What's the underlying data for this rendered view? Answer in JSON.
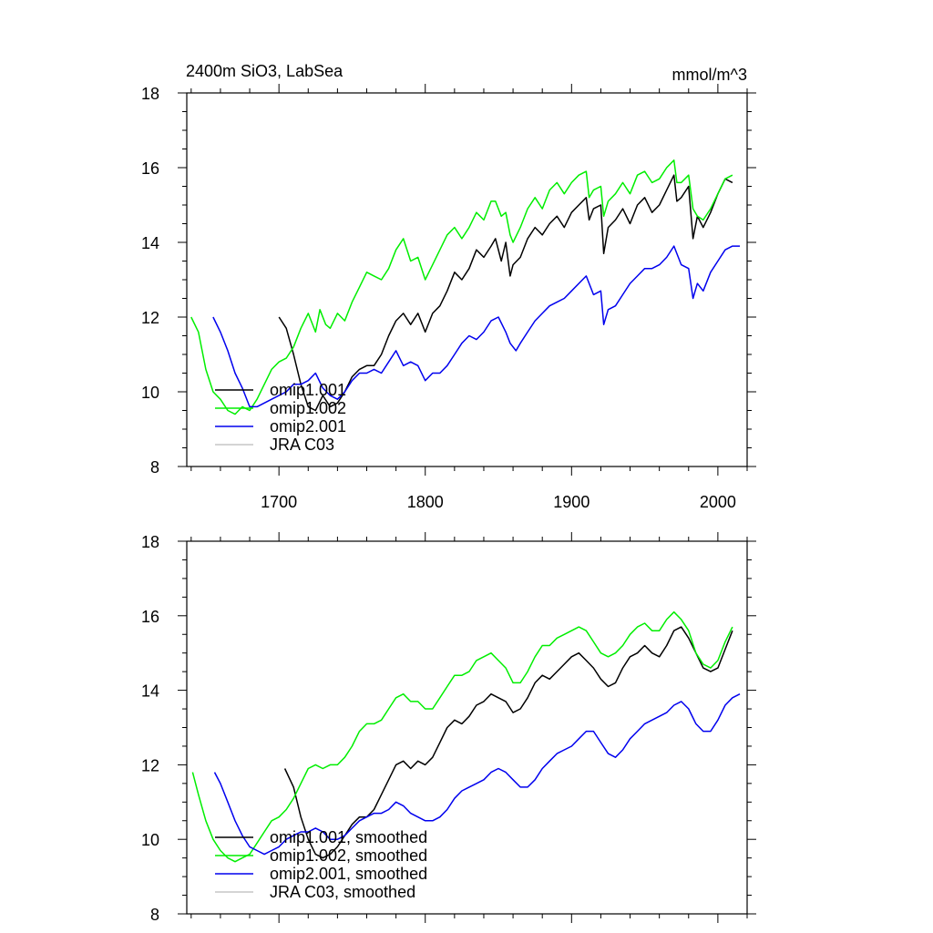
{
  "figure": {
    "title_left": "2400m SiO3, LabSea",
    "title_right": "mmol/m^3"
  },
  "colors": {
    "omip1.001": "#000000",
    "omip1.002": "#00ee00",
    "omip2.001": "#0000ee",
    "JRA C03": "#bbbbbb"
  },
  "chart_data": [
    {
      "type": "line",
      "panel": "top",
      "xlim": [
        1637,
        2020
      ],
      "ylim": [
        8,
        18
      ],
      "xticks": [
        1700,
        1800,
        1900,
        2000
      ],
      "yticks": [
        8,
        10,
        12,
        14,
        16,
        18
      ],
      "legend_placement": "bottom-left",
      "series": [
        {
          "name": "omip1.001",
          "color": "#000000",
          "x": [
            1700,
            1705,
            1710,
            1715,
            1720,
            1725,
            1730,
            1735,
            1740,
            1745,
            1750,
            1755,
            1760,
            1765,
            1770,
            1775,
            1780,
            1785,
            1790,
            1795,
            1800,
            1805,
            1810,
            1815,
            1820,
            1825,
            1830,
            1835,
            1840,
            1845,
            1848,
            1852,
            1855,
            1858,
            1860,
            1865,
            1870,
            1875,
            1880,
            1885,
            1890,
            1895,
            1900,
            1905,
            1910,
            1912,
            1915,
            1920,
            1922,
            1925,
            1930,
            1935,
            1940,
            1945,
            1950,
            1955,
            1960,
            1965,
            1970,
            1972,
            1975,
            1980,
            1983,
            1986,
            1990,
            1995,
            2000,
            2005,
            2010
          ],
          "y": [
            12.0,
            11.7,
            11.0,
            10.2,
            9.6,
            9.5,
            9.9,
            9.6,
            9.7,
            10.0,
            10.4,
            10.6,
            10.7,
            10.7,
            11.0,
            11.5,
            11.9,
            12.1,
            11.8,
            12.1,
            11.6,
            12.1,
            12.3,
            12.7,
            13.2,
            13.0,
            13.3,
            13.8,
            13.6,
            13.9,
            14.1,
            13.5,
            14.0,
            13.1,
            13.4,
            13.6,
            14.1,
            14.4,
            14.2,
            14.5,
            14.7,
            14.4,
            14.8,
            15.0,
            15.2,
            14.6,
            14.9,
            15.0,
            13.7,
            14.4,
            14.6,
            14.9,
            14.5,
            15.0,
            15.2,
            14.8,
            15.0,
            15.4,
            15.8,
            15.1,
            15.2,
            15.5,
            14.1,
            14.7,
            14.4,
            14.8,
            15.3,
            15.7,
            15.6
          ]
        },
        {
          "name": "omip1.002",
          "color": "#00ee00",
          "x": [
            1640,
            1645,
            1650,
            1655,
            1660,
            1665,
            1670,
            1675,
            1680,
            1685,
            1690,
            1695,
            1700,
            1705,
            1710,
            1715,
            1720,
            1725,
            1728,
            1732,
            1735,
            1740,
            1745,
            1750,
            1755,
            1760,
            1765,
            1770,
            1775,
            1780,
            1785,
            1790,
            1795,
            1800,
            1805,
            1810,
            1815,
            1820,
            1825,
            1830,
            1835,
            1840,
            1845,
            1848,
            1852,
            1855,
            1858,
            1860,
            1865,
            1870,
            1875,
            1880,
            1885,
            1890,
            1895,
            1900,
            1905,
            1910,
            1912,
            1915,
            1920,
            1922,
            1925,
            1930,
            1935,
            1940,
            1945,
            1950,
            1955,
            1960,
            1965,
            1970,
            1972,
            1975,
            1980,
            1983,
            1986,
            1990,
            1995,
            2000,
            2005,
            2010
          ],
          "y": [
            12.0,
            11.6,
            10.6,
            10.0,
            9.8,
            9.5,
            9.4,
            9.6,
            9.5,
            9.8,
            10.2,
            10.6,
            10.8,
            10.9,
            11.2,
            11.7,
            12.1,
            11.6,
            12.2,
            11.8,
            11.7,
            12.1,
            11.9,
            12.4,
            12.8,
            13.2,
            13.1,
            13.0,
            13.3,
            13.8,
            14.1,
            13.5,
            13.6,
            13.0,
            13.4,
            13.8,
            14.2,
            14.4,
            14.1,
            14.4,
            14.8,
            14.6,
            15.1,
            15.1,
            14.7,
            14.8,
            14.2,
            14.0,
            14.4,
            14.9,
            15.2,
            14.9,
            15.4,
            15.6,
            15.3,
            15.6,
            15.8,
            15.9,
            15.2,
            15.4,
            15.5,
            14.7,
            15.1,
            15.3,
            15.6,
            15.3,
            15.8,
            15.9,
            15.6,
            15.7,
            16.0,
            16.2,
            15.6,
            15.6,
            15.8,
            14.9,
            14.7,
            14.6,
            14.9,
            15.3,
            15.7,
            15.8
          ]
        },
        {
          "name": "omip2.001",
          "color": "#0000ee",
          "x": [
            1655,
            1660,
            1665,
            1670,
            1675,
            1680,
            1685,
            1690,
            1695,
            1700,
            1705,
            1710,
            1715,
            1720,
            1725,
            1730,
            1735,
            1740,
            1745,
            1750,
            1755,
            1760,
            1765,
            1770,
            1775,
            1780,
            1785,
            1790,
            1795,
            1800,
            1805,
            1810,
            1815,
            1820,
            1825,
            1830,
            1835,
            1840,
            1845,
            1850,
            1855,
            1858,
            1862,
            1865,
            1870,
            1875,
            1880,
            1885,
            1890,
            1895,
            1900,
            1905,
            1910,
            1915,
            1920,
            1922,
            1925,
            1930,
            1935,
            1940,
            1945,
            1950,
            1955,
            1960,
            1965,
            1970,
            1975,
            1980,
            1983,
            1986,
            1990,
            1995,
            2000,
            2005,
            2010,
            2015
          ],
          "y": [
            12.0,
            11.6,
            11.1,
            10.5,
            10.1,
            9.6,
            9.6,
            9.7,
            9.8,
            9.9,
            10.0,
            10.2,
            10.2,
            10.3,
            10.5,
            10.1,
            9.9,
            9.8,
            10.0,
            10.3,
            10.5,
            10.5,
            10.6,
            10.5,
            10.8,
            11.1,
            10.7,
            10.8,
            10.7,
            10.3,
            10.5,
            10.5,
            10.7,
            11.0,
            11.3,
            11.5,
            11.4,
            11.6,
            11.9,
            12.0,
            11.6,
            11.3,
            11.1,
            11.3,
            11.6,
            11.9,
            12.1,
            12.3,
            12.4,
            12.5,
            12.7,
            12.9,
            13.1,
            12.6,
            12.7,
            11.8,
            12.2,
            12.3,
            12.6,
            12.9,
            13.1,
            13.3,
            13.3,
            13.4,
            13.6,
            13.9,
            13.4,
            13.3,
            12.5,
            12.9,
            12.7,
            13.2,
            13.5,
            13.8,
            13.9,
            13.9
          ]
        }
      ],
      "legend": [
        "omip1.001",
        "omip1.002",
        "omip2.001",
        "JRA C03"
      ]
    },
    {
      "type": "line",
      "panel": "bottom",
      "xlim": [
        1637,
        2020
      ],
      "ylim": [
        8,
        18
      ],
      "xticks": [
        1700,
        1800,
        1900,
        2000
      ],
      "yticks": [
        8,
        10,
        12,
        14,
        16,
        18
      ],
      "legend_placement": "bottom-left",
      "series": [
        {
          "name": "omip1.001, smoothed",
          "color": "#000000",
          "x": [
            1704,
            1710,
            1715,
            1720,
            1725,
            1730,
            1735,
            1740,
            1745,
            1750,
            1755,
            1760,
            1765,
            1770,
            1775,
            1780,
            1785,
            1790,
            1795,
            1800,
            1805,
            1810,
            1815,
            1820,
            1825,
            1830,
            1835,
            1840,
            1845,
            1850,
            1855,
            1860,
            1865,
            1870,
            1875,
            1880,
            1885,
            1890,
            1895,
            1900,
            1905,
            1910,
            1915,
            1920,
            1925,
            1930,
            1935,
            1940,
            1945,
            1950,
            1955,
            1960,
            1965,
            1970,
            1975,
            1980,
            1985,
            1990,
            1995,
            2000,
            2005,
            2010
          ],
          "y": [
            11.9,
            11.4,
            10.6,
            10.0,
            9.6,
            9.5,
            9.6,
            9.8,
            10.1,
            10.4,
            10.6,
            10.6,
            10.8,
            11.2,
            11.6,
            12.0,
            12.1,
            11.9,
            12.1,
            12.0,
            12.2,
            12.6,
            13.0,
            13.2,
            13.1,
            13.3,
            13.6,
            13.7,
            13.9,
            13.8,
            13.7,
            13.4,
            13.5,
            13.8,
            14.2,
            14.4,
            14.3,
            14.5,
            14.7,
            14.9,
            15.0,
            14.8,
            14.6,
            14.3,
            14.1,
            14.2,
            14.6,
            14.9,
            15.0,
            15.2,
            15.0,
            14.9,
            15.2,
            15.6,
            15.7,
            15.4,
            15.0,
            14.6,
            14.5,
            14.6,
            15.1,
            15.6
          ]
        },
        {
          "name": "omip1.002, smoothed",
          "color": "#00ee00",
          "x": [
            1641,
            1645,
            1650,
            1655,
            1660,
            1665,
            1670,
            1675,
            1680,
            1685,
            1690,
            1695,
            1700,
            1705,
            1710,
            1715,
            1720,
            1725,
            1730,
            1735,
            1740,
            1745,
            1750,
            1755,
            1760,
            1765,
            1770,
            1775,
            1780,
            1785,
            1790,
            1795,
            1800,
            1805,
            1810,
            1815,
            1820,
            1825,
            1830,
            1835,
            1840,
            1845,
            1850,
            1855,
            1860,
            1865,
            1870,
            1875,
            1880,
            1885,
            1890,
            1895,
            1900,
            1905,
            1910,
            1915,
            1920,
            1925,
            1930,
            1935,
            1940,
            1945,
            1950,
            1955,
            1960,
            1965,
            1970,
            1975,
            1980,
            1985,
            1990,
            1995,
            2000,
            2005,
            2010
          ],
          "y": [
            11.8,
            11.2,
            10.5,
            10.0,
            9.7,
            9.5,
            9.4,
            9.5,
            9.6,
            9.9,
            10.2,
            10.5,
            10.6,
            10.8,
            11.1,
            11.5,
            11.9,
            12.0,
            11.9,
            12.0,
            12.0,
            12.2,
            12.5,
            12.9,
            13.1,
            13.1,
            13.2,
            13.5,
            13.8,
            13.9,
            13.7,
            13.7,
            13.5,
            13.5,
            13.8,
            14.1,
            14.4,
            14.4,
            14.5,
            14.8,
            14.9,
            15.0,
            14.8,
            14.6,
            14.2,
            14.2,
            14.5,
            14.9,
            15.2,
            15.2,
            15.4,
            15.5,
            15.6,
            15.7,
            15.6,
            15.3,
            15.0,
            14.9,
            15.0,
            15.2,
            15.5,
            15.7,
            15.8,
            15.6,
            15.6,
            15.9,
            16.1,
            15.9,
            15.6,
            15.0,
            14.7,
            14.6,
            14.8,
            15.3,
            15.7
          ]
        },
        {
          "name": "omip2.001, smoothed",
          "color": "#0000ee",
          "x": [
            1656,
            1660,
            1665,
            1670,
            1675,
            1680,
            1685,
            1690,
            1695,
            1700,
            1705,
            1710,
            1715,
            1720,
            1725,
            1730,
            1735,
            1740,
            1745,
            1750,
            1755,
            1760,
            1765,
            1770,
            1775,
            1780,
            1785,
            1790,
            1795,
            1800,
            1805,
            1810,
            1815,
            1820,
            1825,
            1830,
            1835,
            1840,
            1845,
            1850,
            1855,
            1860,
            1865,
            1870,
            1875,
            1880,
            1885,
            1890,
            1895,
            1900,
            1905,
            1910,
            1915,
            1920,
            1925,
            1930,
            1935,
            1940,
            1945,
            1950,
            1955,
            1960,
            1965,
            1970,
            1975,
            1980,
            1985,
            1990,
            1995,
            2000,
            2005,
            2010,
            2015
          ],
          "y": [
            11.8,
            11.5,
            11.0,
            10.5,
            10.1,
            9.8,
            9.7,
            9.6,
            9.7,
            9.8,
            10.0,
            10.1,
            10.2,
            10.2,
            10.3,
            10.2,
            10.0,
            10.0,
            10.1,
            10.3,
            10.5,
            10.6,
            10.7,
            10.7,
            10.8,
            11.0,
            10.9,
            10.7,
            10.6,
            10.5,
            10.5,
            10.6,
            10.8,
            11.1,
            11.3,
            11.4,
            11.5,
            11.6,
            11.8,
            11.9,
            11.8,
            11.6,
            11.4,
            11.4,
            11.6,
            11.9,
            12.1,
            12.3,
            12.4,
            12.5,
            12.7,
            12.9,
            12.9,
            12.6,
            12.3,
            12.2,
            12.4,
            12.7,
            12.9,
            13.1,
            13.2,
            13.3,
            13.4,
            13.6,
            13.7,
            13.5,
            13.1,
            12.9,
            12.9,
            13.2,
            13.6,
            13.8,
            13.9
          ]
        }
      ],
      "legend": [
        "omip1.001, smoothed",
        "omip1.002, smoothed",
        "omip2.001, smoothed",
        "JRA C03, smoothed"
      ]
    }
  ]
}
